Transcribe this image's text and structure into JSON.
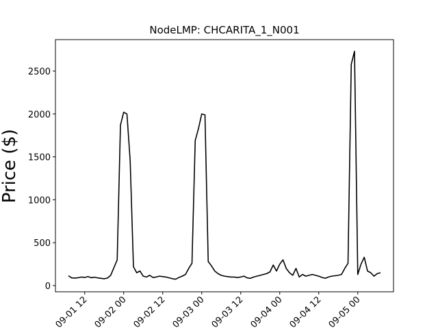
{
  "chart_data": {
    "type": "line",
    "title": "NodeLMP: CHCARITA_1_N001",
    "y_label": "Price ($)",
    "x": [
      "09-01 07",
      "09-01 08",
      "09-01 09",
      "09-01 10",
      "09-01 11",
      "09-01 12",
      "09-01 13",
      "09-01 14",
      "09-01 15",
      "09-01 16",
      "09-01 17",
      "09-01 18",
      "09-01 19",
      "09-01 20",
      "09-01 21",
      "09-01 22",
      "09-01 23",
      "09-02 00",
      "09-02 01",
      "09-02 02",
      "09-02 03",
      "09-02 04",
      "09-02 05",
      "09-02 06",
      "09-02 07",
      "09-02 08",
      "09-02 09",
      "09-02 10",
      "09-02 11",
      "09-02 12",
      "09-02 13",
      "09-02 14",
      "09-02 15",
      "09-02 16",
      "09-02 17",
      "09-02 18",
      "09-02 19",
      "09-02 20",
      "09-02 21",
      "09-02 22",
      "09-02 23",
      "09-03 00",
      "09-03 01",
      "09-03 02",
      "09-03 03",
      "09-03 04",
      "09-03 05",
      "09-03 06",
      "09-03 07",
      "09-03 08",
      "09-03 09",
      "09-03 10",
      "09-03 11",
      "09-03 12",
      "09-03 13",
      "09-03 14",
      "09-03 15",
      "09-03 16",
      "09-03 17",
      "09-03 18",
      "09-03 19",
      "09-03 20",
      "09-03 21",
      "09-03 22",
      "09-03 23",
      "09-04 00",
      "09-04 01",
      "09-04 02",
      "09-04 03",
      "09-04 04",
      "09-04 05",
      "09-04 06",
      "09-04 07",
      "09-04 08",
      "09-04 09",
      "09-04 10",
      "09-04 11",
      "09-04 12",
      "09-04 13",
      "09-04 14",
      "09-04 15",
      "09-04 16",
      "09-04 17",
      "09-04 18",
      "09-04 19",
      "09-04 20",
      "09-04 21",
      "09-04 22",
      "09-04 23",
      "09-05 00",
      "09-05 01",
      "09-05 02",
      "09-05 03",
      "09-05 04",
      "09-05 05",
      "09-05 06",
      "09-05 07"
    ],
    "series": [
      {
        "color": "#000000",
        "values": [
          115,
          90,
          88,
          92,
          100,
          95,
          105,
          92,
          98,
          90,
          85,
          80,
          88,
          120,
          210,
          300,
          1870,
          2020,
          2000,
          1450,
          220,
          150,
          170,
          110,
          100,
          120,
          95,
          100,
          110,
          105,
          100,
          90,
          80,
          75,
          95,
          110,
          130,
          200,
          260,
          1690,
          1830,
          2000,
          1990,
          280,
          230,
          170,
          140,
          120,
          110,
          105,
          100,
          100,
          95,
          100,
          110,
          90,
          85,
          100,
          110,
          120,
          130,
          140,
          160,
          240,
          170,
          250,
          300,
          200,
          150,
          120,
          200,
          100,
          130,
          110,
          120,
          130,
          120,
          110,
          95,
          85,
          100,
          110,
          115,
          120,
          130,
          200,
          260,
          2580,
          2730,
          130,
          250,
          330,
          170,
          150,
          110,
          140,
          150
        ]
      }
    ],
    "xlim": [
      "09-01 03",
      "09-05 11"
    ],
    "xticks": [
      "09-01 12",
      "09-02 00",
      "09-02 12",
      "09-03 00",
      "09-03 12",
      "09-04 00",
      "09-04 12",
      "09-05 00"
    ],
    "ylim": [
      -72,
      2866
    ],
    "yticks": [
      0,
      500,
      1000,
      1500,
      2000,
      2500
    ]
  }
}
